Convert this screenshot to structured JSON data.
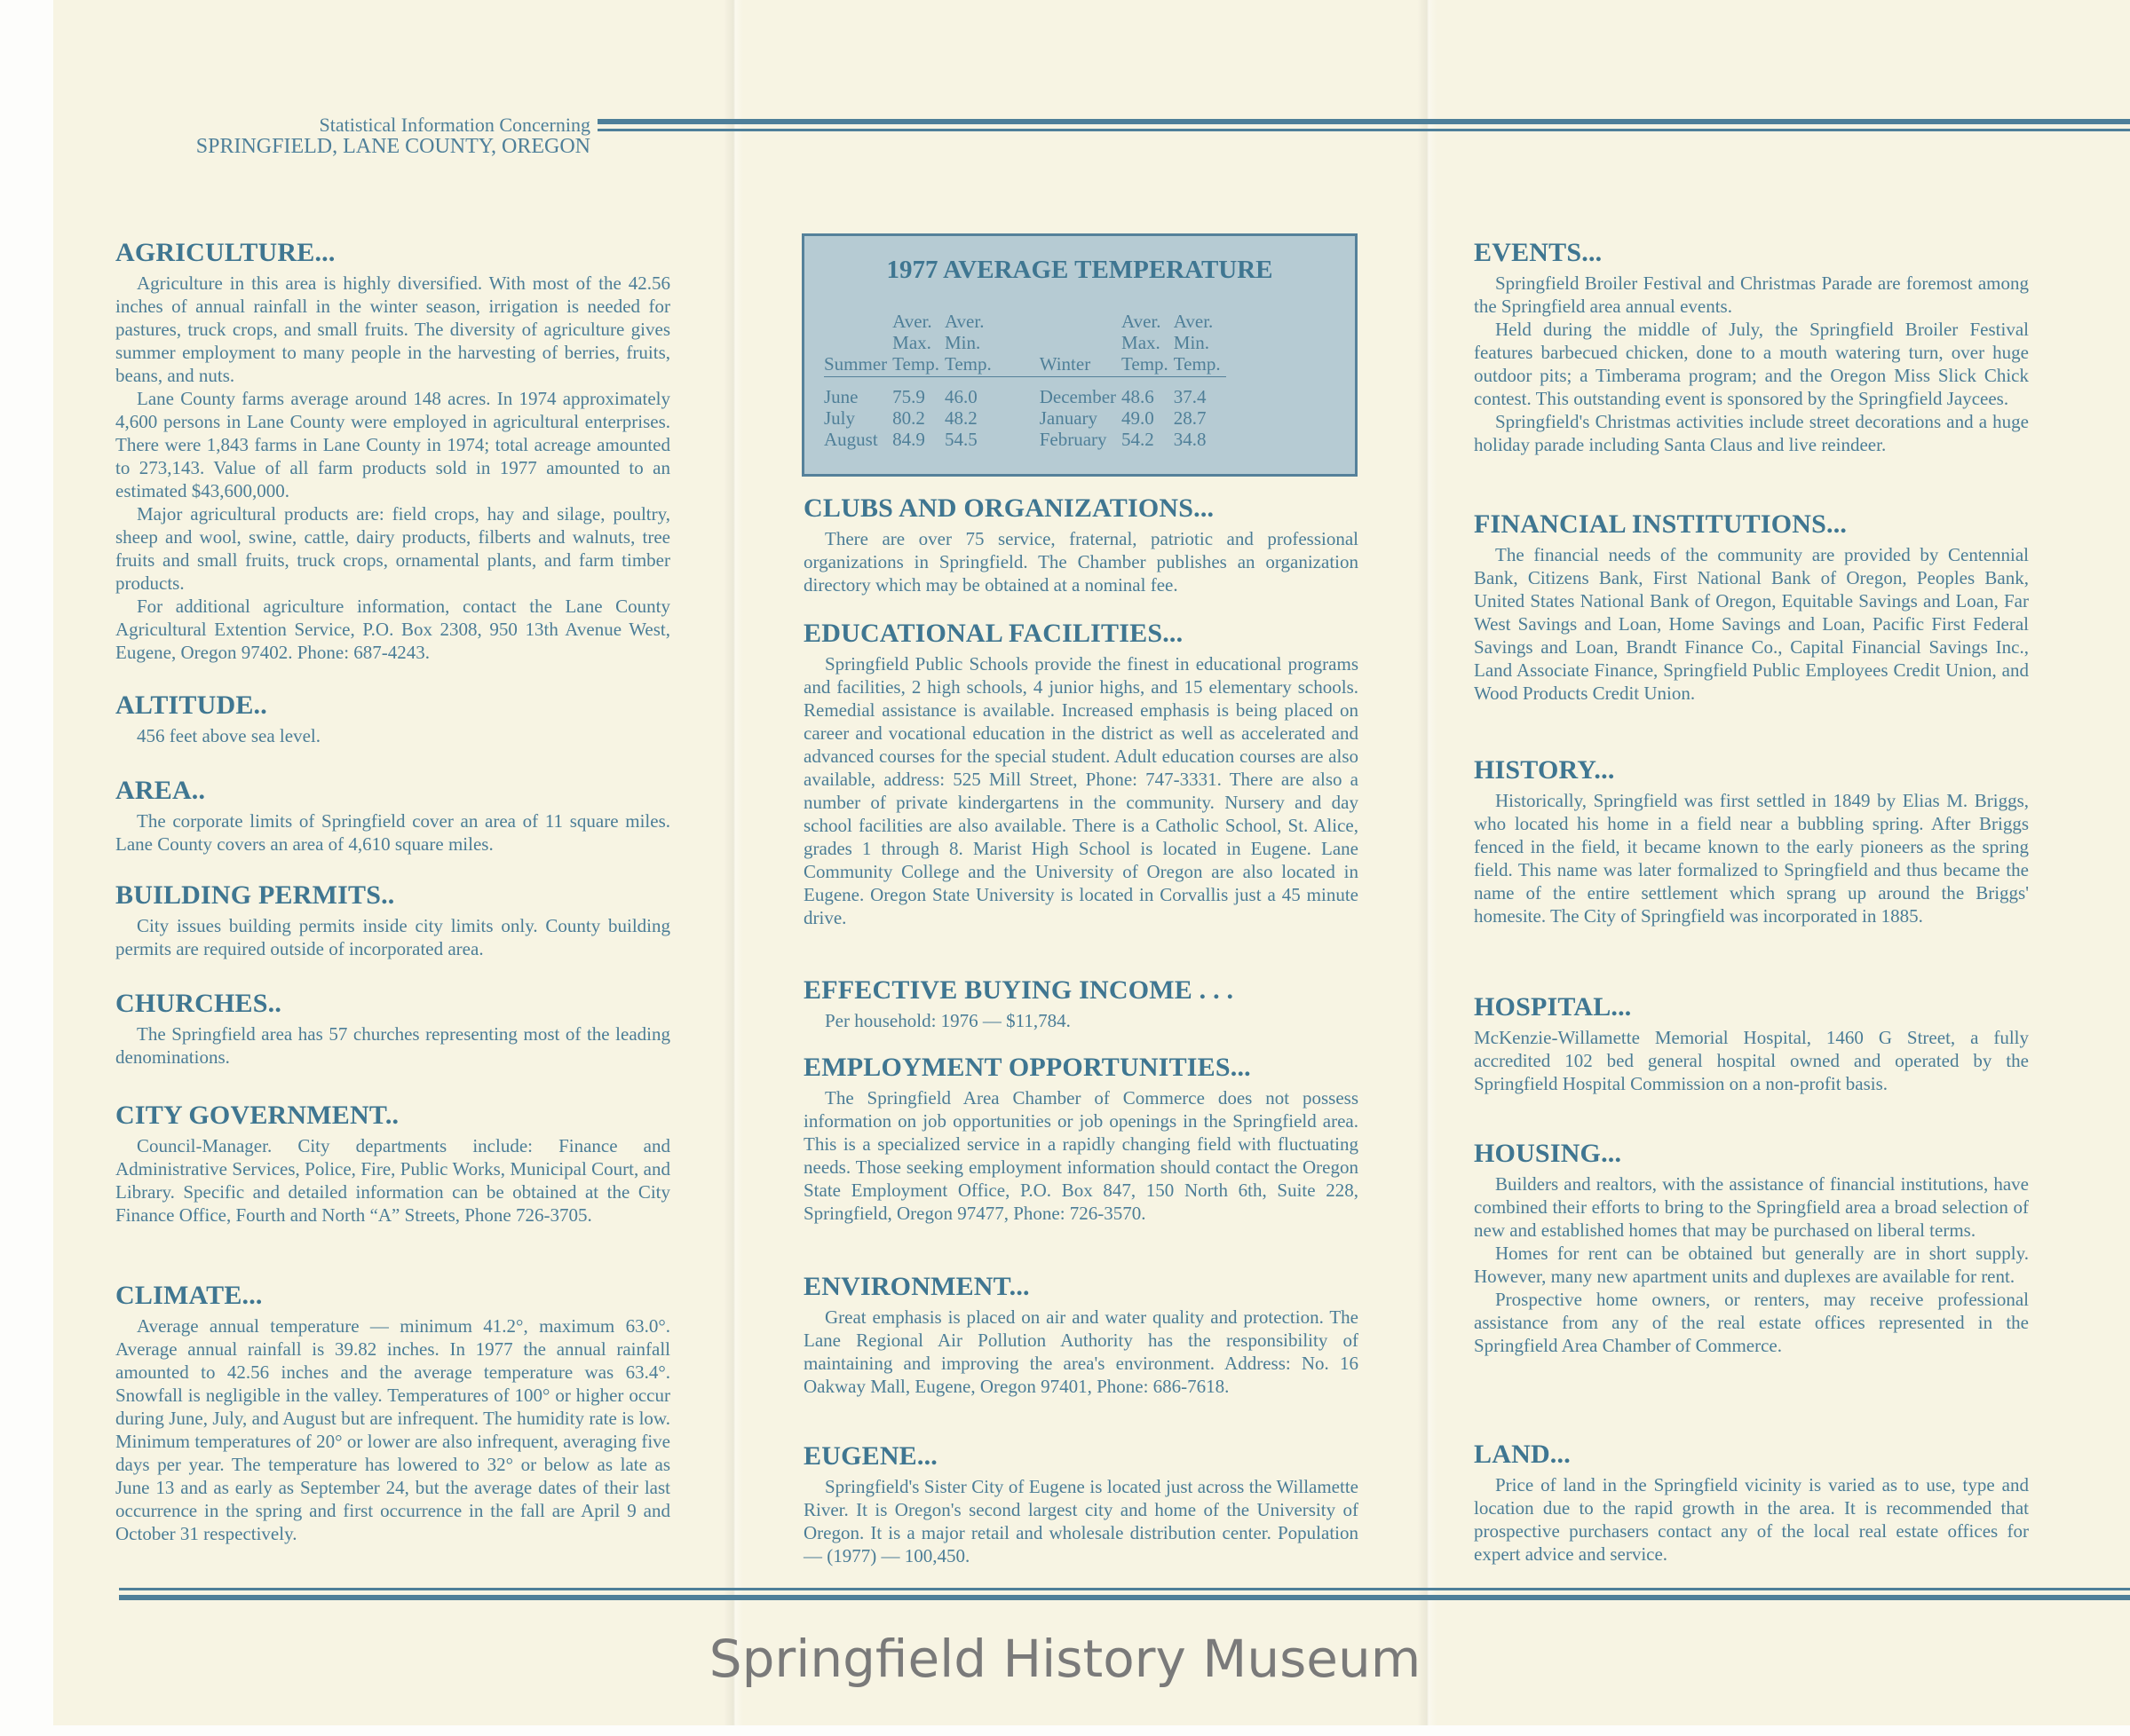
{
  "header": {
    "line1": "Statistical Information Concerning",
    "line2": "SPRINGFIELD, LANE COUNTY, OREGON"
  },
  "watermark": "Springfield History Museum",
  "temperature_table": {
    "title": "1977 AVERAGE TEMPERATURE",
    "header": {
      "summer": "Summer",
      "winter": "Winter",
      "aver": "Aver.",
      "max": "Max.",
      "min": "Min.",
      "temp": "Temp."
    },
    "rows": [
      {
        "summer_month": "June",
        "summer_max": "75.9",
        "summer_min": "46.0",
        "winter_month": "December",
        "winter_max": "48.6",
        "winter_min": "37.4"
      },
      {
        "summer_month": "July",
        "summer_max": "80.2",
        "summer_min": "48.2",
        "winter_month": "January",
        "winter_max": "49.0",
        "winter_min": "28.7"
      },
      {
        "summer_month": "August",
        "summer_max": "84.9",
        "summer_min": "54.5",
        "winter_month": "February",
        "winter_max": "54.2",
        "winter_min": "34.8"
      }
    ]
  },
  "sections": [
    {
      "heading": "AGRICULTURE...",
      "paragraphs": [
        "Agriculture in this area is highly diversified. With most of the 42.56 inches of annual rainfall in the winter season, irrigation is needed for pastures, truck crops, and small fruits. The diversity of agriculture gives summer employment to many people in the harvesting of berries, fruits, beans, and nuts.",
        "Lane County farms average around 148 acres. In 1974 approximately 4,600 persons in Lane County were employed in agricultural enterprises. There were 1,843 farms in Lane County in 1974; total acreage amounted to 273,143. Value of all farm products sold in 1977 amounted to an estimated $43,600,000.",
        "Major agricultural products are: field crops, hay and silage, poultry, sheep and wool, swine, cattle, dairy products, filberts and walnuts, tree fruits and small fruits, truck crops, ornamental plants, and farm timber products.",
        "For additional agriculture information, contact the Lane County Agricultural Extention Service, P.O. Box 2308, 950 13th Avenue West, Eugene, Oregon 97402. Phone: 687-4243."
      ]
    },
    {
      "heading": "ALTITUDE..",
      "paragraphs": [
        "456 feet above sea level."
      ]
    },
    {
      "heading": "AREA..",
      "paragraphs": [
        "The corporate limits of Springfield cover an area of 11 square miles. Lane County covers an area of 4,610 square miles."
      ]
    },
    {
      "heading": "BUILDING PERMITS..",
      "paragraphs": [
        "City issues building permits inside city limits only. County building permits are required outside of incorporated area."
      ]
    },
    {
      "heading": "CHURCHES..",
      "paragraphs": [
        "The Springfield area has 57 churches representing most of the leading denominations."
      ]
    },
    {
      "heading": "CITY GOVERNMENT..",
      "paragraphs": [
        "Council-Manager. City departments include: Finance and Administrative Services, Police, Fire, Public Works, Municipal Court, and Library. Specific and detailed information can be obtained at the City Finance Office, Fourth and North “A” Streets, Phone 726-3705."
      ]
    },
    {
      "heading": "CLIMATE...",
      "paragraphs": [
        "Average annual temperature — minimum 41.2°, maximum 63.0°. Average annual rainfall is 39.82 inches. In 1977 the annual rainfall amounted to 42.56 inches and the average temperature was 63.4°. Snowfall is negligible in the valley. Temperatures of 100° or higher occur during June, July, and August but are infrequent. The humidity rate is low. Minimum temperatures of 20° or lower are also infrequent, averaging five days per year. The temperature has lowered to 32° or below as late as June 13 and as early as September 24, but the average dates of their last occurrence in the spring and first occurrence in the fall are April 9 and October 31 respectively."
      ]
    },
    {
      "heading": "CLUBS AND ORGANIZATIONS...",
      "paragraphs": [
        "There are over 75 service, fraternal, patriotic and professional organizations in Springfield. The Chamber publishes an organization directory which may be obtained at a nominal fee."
      ]
    },
    {
      "heading": "EDUCATIONAL FACILITIES...",
      "paragraphs": [
        "Springfield Public Schools provide the finest in educational programs and facilities, 2 high schools, 4 junior highs, and 15 elementary schools. Remedial assistance is available. Increased emphasis is being placed on career and vocational education in the district as well as accelerated and advanced courses for the special student. Adult education courses are also available, address: 525 Mill Street, Phone: 747-3331. There are also a number of private kindergartens in the community. Nursery and day school facilities are also available. There is a Catholic School, St. Alice, grades 1 through 8. Marist High School is located in Eugene. Lane Community College and the University of Oregon are also located in Eugene. Oregon State University is located in Corvallis just a 45 minute drive."
      ]
    },
    {
      "heading": "EFFECTIVE BUYING INCOME . . .",
      "paragraphs": [
        "Per household: 1976 — $11,784."
      ]
    },
    {
      "heading": "EMPLOYMENT OPPORTUNITIES...",
      "paragraphs": [
        "The Springfield Area Chamber of Commerce does not possess information on job opportunities or job openings in the Springfield area. This is a specialized service in a rapidly changing field with fluctuating needs. Those seeking employment information should contact the Oregon State Employment Office, P.O. Box 847, 150 North 6th, Suite 228, Springfield, Oregon 97477, Phone: 726-3570."
      ]
    },
    {
      "heading": "ENVIRONMENT...",
      "paragraphs": [
        "Great emphasis is placed on air and water quality and protection. The Lane Regional Air Pollution Authority has the responsibility of maintaining and improving the area's environment. Address: No. 16 Oakway Mall, Eugene, Oregon 97401, Phone: 686-7618."
      ]
    },
    {
      "heading": "EUGENE...",
      "paragraphs": [
        "Springfield's Sister City of Eugene is located just across the Willamette River. It is Oregon's second largest city and home of the University of Oregon. It is a major retail and wholesale distribution center. Population — (1977) — 100,450."
      ]
    },
    {
      "heading": "EVENTS...",
      "paragraphs": [
        "Springfield Broiler Festival and Christmas Parade are foremost among the Springfield area annual events.",
        "Held during the middle of July, the Springfield Broiler Festival features barbecued chicken, done to a mouth watering turn, over huge outdoor pits; a Timberama program; and the Oregon Miss Slick Chick contest. This outstanding event is sponsored by the Springfield Jaycees.",
        "Springfield's Christmas activities include street decorations and a huge holiday parade including Santa Claus and live reindeer."
      ]
    },
    {
      "heading": "FINANCIAL INSTITUTIONS...",
      "paragraphs": [
        "The financial needs of the community are provided by Centennial Bank, Citizens Bank, First National Bank of Oregon, Peoples Bank, United States National Bank of Oregon, Equitable Savings and Loan, Far West Savings and Loan, Home Savings and Loan, Pacific First Federal Savings and Loan, Brandt Finance Co., Capital Financial Savings Inc., Land Associate Finance, Springfield Public Employees Credit Union, and Wood Products Credit Union."
      ]
    },
    {
      "heading": "HISTORY...",
      "paragraphs": [
        "Historically, Springfield was first settled in 1849 by Elias M. Briggs, who located his home in a field near a bubbling spring. After Briggs fenced in the field, it became known to the early pioneers as the spring field. This name was later formalized to Springfield and thus became the name of the entire settlement which sprang up around the Briggs' homesite. The City of Springfield was incorporated in 1885."
      ]
    },
    {
      "heading": "HOSPITAL...",
      "paragraphs": [
        "McKenzie-Willamette Memorial Hospital, 1460 G Street, a fully accredited 102 bed general hospital owned and operated by the Springfield Hospital Commission on a non-profit basis."
      ]
    },
    {
      "heading": "HOUSING...",
      "paragraphs": [
        "Builders and realtors, with the assistance of financial institutions, have combined their efforts to bring to the Springfield area a broad selection of new and established homes that may be purchased on liberal terms.",
        "Homes for rent can be obtained but generally are in short supply. However, many new apartment units and duplexes are available for rent.",
        "Prospective home owners, or renters, may receive professional assistance from any of the real estate offices represented in the Springfield Area Chamber of Commerce."
      ]
    },
    {
      "heading": "LAND...",
      "paragraphs": [
        "Price of land in the Springfield vicinity is varied as to use, type and location due to the rapid growth in the area. It is recommended that prospective purchasers contact any of the local real estate offices for expert advice and service."
      ]
    }
  ]
}
